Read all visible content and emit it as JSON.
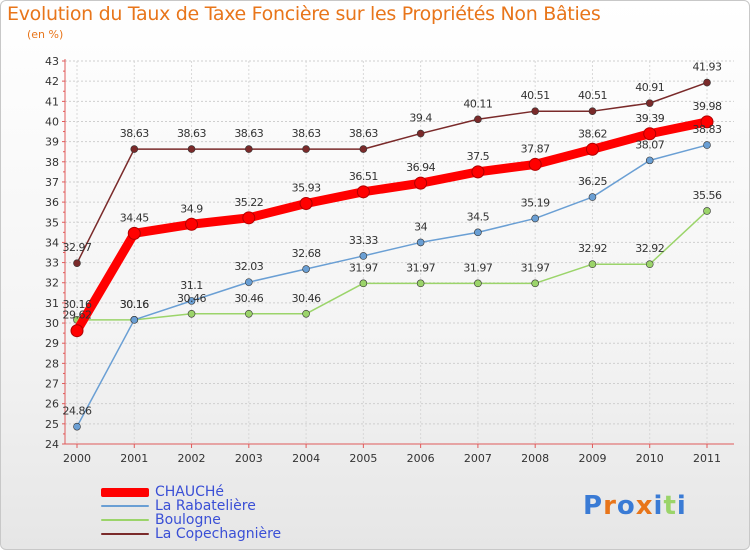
{
  "chart_data": {
    "type": "line",
    "title": "Evolution du Taux de Taxe Foncière sur les Propriétés Non Bâties",
    "subtitle": "(en %)",
    "x": [
      "2000",
      "2001",
      "2002",
      "2003",
      "2004",
      "2005",
      "2006",
      "2007",
      "2008",
      "2009",
      "2010",
      "2011"
    ],
    "ylim": [
      24,
      43
    ],
    "yticks": [
      24,
      25,
      26,
      27,
      28,
      29,
      30,
      31,
      32,
      33,
      34,
      35,
      36,
      37,
      38,
      39,
      40,
      41,
      42,
      43
    ],
    "grid": true,
    "legend_position": "bottom-left",
    "series": [
      {
        "name": "CHAUCHé",
        "color": "#ff0000",
        "values": [
          29.62,
          34.45,
          34.9,
          35.22,
          35.93,
          36.51,
          36.94,
          37.5,
          37.87,
          38.62,
          39.39,
          39.98
        ],
        "labels": [
          "29.62",
          "34.45",
          "34.9",
          "35.22",
          "35.93",
          "36.51",
          "36.94",
          "37.5",
          "37.87",
          "38.62",
          "39.39",
          "39.98"
        ]
      },
      {
        "name": "La Rabatelière",
        "color": "#6a9fd4",
        "values": [
          24.86,
          30.16,
          31.1,
          32.03,
          32.68,
          33.33,
          34.0,
          34.5,
          35.19,
          36.25,
          38.07,
          38.83
        ],
        "labels": [
          "24.86",
          "30.16",
          "31.1",
          "32.03",
          "32.68",
          "33.33",
          "34",
          "34.5",
          "35.19",
          "36.25",
          "38.07",
          "38.83"
        ]
      },
      {
        "name": "Boulogne",
        "color": "#9bd46a",
        "values": [
          30.16,
          30.16,
          30.46,
          30.46,
          30.46,
          31.97,
          31.97,
          31.97,
          31.97,
          32.92,
          32.92,
          35.56
        ],
        "labels": [
          "30.16",
          "30.16",
          "30.46",
          "30.46",
          "30.46",
          "31.97",
          "31.97",
          "31.97",
          "31.97",
          "32.92",
          "32.92",
          "35.56"
        ]
      },
      {
        "name": "La Copechagnière",
        "color": "#7a2a2a",
        "values": [
          32.97,
          38.63,
          38.63,
          38.63,
          38.63,
          38.63,
          39.4,
          40.11,
          40.51,
          40.51,
          40.91,
          41.93
        ],
        "labels": [
          "32.97",
          "38.63",
          "38.63",
          "38.63",
          "38.63",
          "38.63",
          "39.4",
          "40.11",
          "40.51",
          "40.51",
          "40.91",
          "41.93"
        ]
      }
    ]
  },
  "logo": {
    "text": "Proxiti",
    "letters": [
      "P",
      "r",
      "o",
      "x",
      "i",
      "t",
      "i"
    ],
    "colors": [
      "#3a7bd5",
      "#e8751a",
      "#3a7bd5",
      "#e8751a",
      "#3a7bd5",
      "#9bd46a",
      "#3a7bd5"
    ]
  }
}
